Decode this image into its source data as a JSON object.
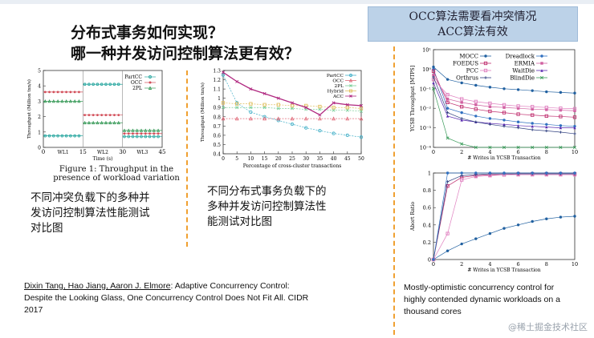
{
  "title": {
    "line1": "分布式事务如何实现？",
    "line2": "哪一种并发访问控制算法更有效？"
  },
  "callout": {
    "line1": "OCC算法需要看冲突情况",
    "line2": "ACC算法有效"
  },
  "fig1": {
    "chart_data": {
      "type": "scatter",
      "series": [
        {
          "name": "PartCC",
          "segments": [
            [
              0,
              15,
              0.75
            ],
            [
              15,
              30,
              4.1
            ],
            [
              30,
              45,
              0.7
            ]
          ]
        },
        {
          "name": "OCC",
          "segments": [
            [
              0,
              15,
              3.6
            ],
            [
              15,
              30,
              2.1
            ],
            [
              30,
              45,
              0.9
            ]
          ]
        },
        {
          "name": "2PL",
          "segments": [
            [
              0,
              15,
              3.0
            ],
            [
              15,
              30,
              1.6
            ],
            [
              30,
              45,
              1.1
            ]
          ]
        }
      ],
      "x_ticks": [
        "0",
        "15",
        "30",
        "45"
      ],
      "region_labels": [
        "WL1",
        "WL2",
        "WL3"
      ],
      "xlabel": "Time (s)",
      "ylabel": "Throughput (Million txn/s)",
      "ylim": [
        0,
        5
      ],
      "y_ticks": [
        "0",
        "1",
        "2",
        "3",
        "4",
        "5"
      ]
    },
    "caption1": "Figure 1:  Throughput in the",
    "caption2": "presence of workload variation",
    "colors": {
      "PartCC": "#2aa7a0",
      "OCC": "#d24d58",
      "2PL": "#3a9b5a"
    }
  },
  "desc1": {
    "l1": "不同冲突负载下的多种并",
    "l2": "发访问控制算法性能测试",
    "l3": "对比图"
  },
  "fig2": {
    "chart_data": {
      "type": "line",
      "x": [
        0,
        5,
        10,
        15,
        20,
        25,
        30,
        35,
        40,
        45,
        50
      ],
      "series": [
        {
          "name": "PartCC",
          "values": [
            1.25,
            0.95,
            0.85,
            0.8,
            0.76,
            0.72,
            0.68,
            0.65,
            0.62,
            0.6,
            0.58
          ]
        },
        {
          "name": "OCC",
          "values": [
            0.78,
            0.78,
            0.78,
            0.78,
            0.78,
            0.78,
            0.78,
            0.78,
            0.78,
            0.78,
            0.78
          ]
        },
        {
          "name": "2PL",
          "values": [
            0.9,
            0.9,
            0.9,
            0.9,
            0.89,
            0.89,
            0.88,
            0.88,
            0.87,
            0.87,
            0.86
          ]
        },
        {
          "name": "Hybrid",
          "values": [
            0.95,
            0.94,
            0.94,
            0.93,
            0.93,
            0.92,
            0.92,
            0.91,
            0.9,
            0.9,
            0.89
          ]
        },
        {
          "name": "ACC",
          "values": [
            1.28,
            1.18,
            1.1,
            1.05,
            1.0,
            0.95,
            0.9,
            0.82,
            0.95,
            0.93,
            0.92
          ]
        }
      ],
      "xlabel": "Percentage of cross-cluster transactions",
      "ylabel": "Throughput (Million txn/s)",
      "ylim": [
        0.4,
        1.3
      ],
      "y_ticks": [
        "0.4",
        "0.5",
        "0.6",
        "0.7",
        "0.8",
        "0.9",
        "1",
        "1.1",
        "1.2",
        "1.3"
      ],
      "x_ticks": [
        "0",
        "5",
        "10",
        "15",
        "20",
        "25",
        "30",
        "35",
        "40",
        "45",
        "50"
      ]
    },
    "colors": {
      "PartCC": "#43b0c8",
      "OCC": "#e06b7a",
      "2PL": "#7ccf9a",
      "Hybrid": "#e0c060",
      "ACC": "#b02880"
    }
  },
  "desc2": {
    "l1": "不同分布式事务负载下的",
    "l2": "多种并发访问控制算法性",
    "l3": "能测试对比图"
  },
  "cite1": {
    "authors": "Dixin Tang, Hao Jiang, Aaron J. Elmore",
    "rest1": ": Adaptive Concurrency Control:",
    "rest2": "Despite the Looking Glass, One Concurrency Control Does Not Fit All. CIDR",
    "rest3": "2017"
  },
  "fig3": {
    "top": {
      "chart_data": {
        "type": "line",
        "x": [
          0,
          1,
          2,
          3,
          4,
          5,
          6,
          7,
          8,
          9,
          10
        ],
        "series": [
          {
            "name": "MOCC",
            "values": [
              1.3,
              0.3,
              0.2,
              0.15,
              0.12,
              0.1,
              0.09,
              0.08,
              0.07,
              0.065,
              0.06
            ]
          },
          {
            "name": "Dreadlock",
            "values": [
              1.0,
              0.01,
              0.006,
              0.004,
              0.003,
              0.0025,
              0.002,
              0.0017,
              0.0015,
              0.0013,
              0.0012
            ]
          },
          {
            "name": "FOEDUS",
            "values": [
              0.8,
              0.02,
              0.012,
              0.009,
              0.007,
              0.006,
              0.005,
              0.0045,
              0.004,
              0.0038,
              0.0035
            ]
          },
          {
            "name": "ERMIA",
            "values": [
              0.5,
              0.03,
              0.02,
              0.015,
              0.012,
              0.011,
              0.01,
              0.009,
              0.0085,
              0.008,
              0.0075
            ]
          },
          {
            "name": "PCC",
            "values": [
              0.3,
              0.05,
              0.03,
              0.022,
              0.018,
              0.015,
              0.013,
              0.012,
              0.011,
              0.01,
              0.0095
            ]
          },
          {
            "name": "WaitDie",
            "values": [
              0.2,
              0.004,
              0.0025,
              0.002,
              0.0017,
              0.0015,
              0.0013,
              0.0012,
              0.0011,
              0.001,
              0.001
            ]
          },
          {
            "name": "Orthrus",
            "values": [
              0.4,
              0.006,
              0.003,
              0.002,
              0.0015,
              0.0012,
              0.001,
              0.0008,
              0.0007,
              0.0006,
              0.0005
            ]
          },
          {
            "name": "BlindDie",
            "values": [
              0.1,
              0.0003,
              0.00015,
              0.0001,
              0.0001,
              0.0001,
              0.0001,
              0.0001,
              0.0001,
              0.0001,
              0.0001
            ]
          }
        ],
        "xlabel": "# Writes in YCSB Transaction",
        "ylabel": "YCSB Throughput [MTPS]",
        "y_ticks": [
          "10⁻⁴",
          "10⁻³",
          "10⁻²",
          "10⁻¹",
          "10⁰",
          "10¹"
        ],
        "x_ticks": [
          "0",
          "2",
          "4",
          "6",
          "8",
          "10"
        ]
      }
    },
    "bottom": {
      "chart_data": {
        "type": "line",
        "x": [
          0,
          1,
          2,
          3,
          4,
          5,
          6,
          7,
          8,
          9,
          10
        ],
        "series": [
          {
            "name": "MOCC",
            "values": [
              0.0,
              0.1,
              0.18,
              0.24,
              0.3,
              0.36,
              0.4,
              0.44,
              0.47,
              0.49,
              0.5
            ]
          },
          {
            "name": "FOEDUS",
            "values": [
              0.0,
              0.85,
              0.95,
              0.97,
              0.98,
              0.98,
              0.99,
              0.99,
              0.99,
              0.99,
              0.99
            ]
          },
          {
            "name": "PCC",
            "values": [
              0.0,
              0.3,
              0.92,
              0.96,
              0.97,
              0.98,
              0.98,
              0.98,
              0.98,
              0.98,
              0.98
            ]
          },
          {
            "name": "Orthrus",
            "values": [
              0.0,
              0.9,
              0.97,
              0.98,
              0.99,
              0.99,
              0.99,
              0.99,
              0.99,
              0.99,
              0.99
            ]
          },
          {
            "name": "Dreadlock",
            "values": [
              0.0,
              1.0,
              1.0,
              1.0,
              1.0,
              1.0,
              1.0,
              1.0,
              1.0,
              1.0,
              1.0
            ]
          }
        ],
        "xlabel": "# Writes in YCSB Transaction",
        "ylabel": "Abort Ratio",
        "ylim": [
          0,
          1
        ],
        "y_ticks": [
          "0",
          "0.2",
          "0.4",
          "0.6",
          "0.8",
          "1"
        ],
        "x_ticks": [
          "0",
          "2",
          "4",
          "6",
          "8",
          "10"
        ]
      }
    },
    "colors": {
      "MOCC": "#2060a0",
      "Dreadlock": "#3070c0",
      "FOEDUS": "#c03070",
      "ERMIA": "#d060a0",
      "PCC": "#e080c0",
      "WaitDie": "#5a2ab0",
      "Orthrus": "#304080",
      "BlindDie": "#3a9b5a"
    }
  },
  "cite3": {
    "l1": "Mostly-optimistic concurrency control for",
    "l2": "highly contended dynamic workloads on a",
    "l3": "thousand cores"
  },
  "watermark": "@稀土掘金技术社区"
}
